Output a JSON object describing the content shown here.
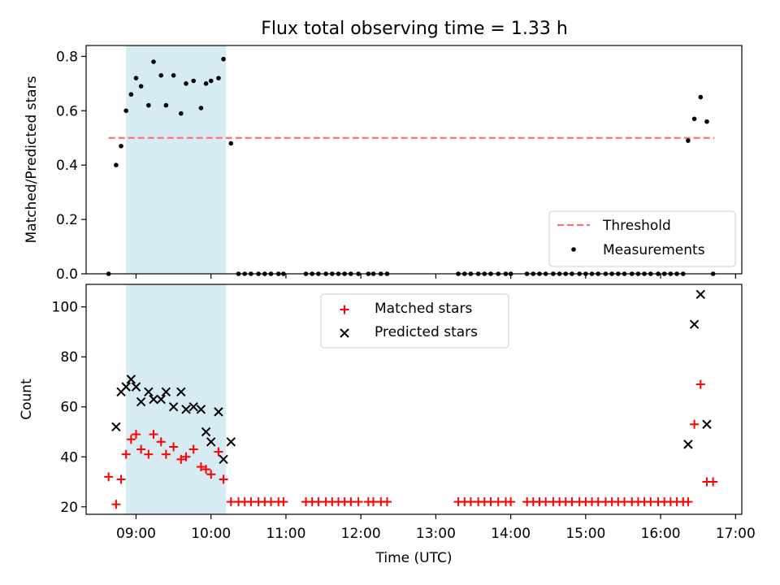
{
  "title": "Flux total observing time = 1.33 h",
  "chart_data": [
    {
      "type": "scatter",
      "xlabel": "",
      "ylabel": "Matched/Predicted stars",
      "xlim": [
        "08:20",
        "17:05"
      ],
      "ylim": [
        0,
        0.84
      ],
      "yticks": [
        0.0,
        0.2,
        0.4,
        0.6,
        0.8
      ],
      "ytick_labels": [
        "0.0",
        "0.2",
        "0.4",
        "0.6",
        "0.8"
      ],
      "grid": false,
      "legend_position": "lower-right",
      "shaded_span": {
        "x": [
          "08:52",
          "10:12"
        ],
        "color": "#add8e6"
      },
      "threshold": {
        "name": "Threshold",
        "y": 0.5,
        "x": [
          "08:38",
          "16:43"
        ],
        "color": "#ff7070",
        "style": "dashed"
      },
      "series": [
        {
          "name": "Measurements",
          "marker": "dot",
          "color": "#000000",
          "x": [
            "08:38",
            "08:44",
            "08:48",
            "08:52",
            "08:56",
            "09:00",
            "09:04",
            "09:10",
            "09:14",
            "09:20",
            "09:24",
            "09:30",
            "09:36",
            "09:40",
            "09:46",
            "09:52",
            "09:56",
            "10:00",
            "10:06",
            "10:10",
            "10:16",
            "10:22",
            "10:27",
            "10:32",
            "10:38",
            "10:43",
            "10:48",
            "10:54",
            "10:58",
            "11:16",
            "11:21",
            "11:26",
            "11:32",
            "11:37",
            "11:42",
            "11:47",
            "11:52",
            "11:58",
            "12:06",
            "12:10",
            "12:16",
            "12:21",
            "13:18",
            "13:23",
            "13:28",
            "13:34",
            "13:39",
            "13:44",
            "13:50",
            "13:56",
            "14:00",
            "14:13",
            "14:18",
            "14:23",
            "14:28",
            "14:34",
            "14:39",
            "14:44",
            "14:49",
            "14:55",
            "15:00",
            "15:05",
            "15:10",
            "15:16",
            "15:21",
            "15:26",
            "15:31",
            "15:37",
            "15:42",
            "15:47",
            "15:52",
            "15:58",
            "16:03",
            "16:08",
            "16:13",
            "16:18",
            "16:22",
            "16:27",
            "16:32",
            "16:37",
            "16:42"
          ],
          "y": [
            0.0,
            0.4,
            0.47,
            0.6,
            0.66,
            0.72,
            0.69,
            0.62,
            0.78,
            0.73,
            0.62,
            0.73,
            0.59,
            0.7,
            0.71,
            0.61,
            0.7,
            0.71,
            0.72,
            0.79,
            0.48,
            0,
            0,
            0,
            0,
            0,
            0,
            0,
            0,
            0,
            0,
            0,
            0,
            0,
            0,
            0,
            0,
            0,
            0,
            0,
            0,
            0,
            0,
            0,
            0,
            0,
            0,
            0,
            0,
            0,
            0,
            0,
            0,
            0,
            0,
            0,
            0,
            0,
            0,
            0,
            0,
            0,
            0,
            0,
            0,
            0,
            0,
            0,
            0,
            0,
            0,
            0,
            0,
            0,
            0,
            0,
            0.49,
            0.57,
            0.65,
            0.56,
            0.0
          ]
        }
      ]
    },
    {
      "type": "scatter",
      "xlabel": "Time (UTC)",
      "ylabel": "Count",
      "xlim": [
        "08:20",
        "17:05"
      ],
      "ylim": [
        17,
        109
      ],
      "yticks": [
        20,
        40,
        60,
        80,
        100
      ],
      "ytick_labels": [
        "20",
        "40",
        "60",
        "80",
        "100"
      ],
      "xticks": [
        "09:00",
        "10:00",
        "11:00",
        "12:00",
        "13:00",
        "14:00",
        "15:00",
        "16:00",
        "17:00"
      ],
      "grid": false,
      "legend_position": "top-center",
      "shaded_span": {
        "x": [
          "08:52",
          "10:12"
        ],
        "color": "#add8e6"
      },
      "series": [
        {
          "name": "Matched stars",
          "marker": "plus",
          "color": "#ff0000",
          "x": [
            "08:38",
            "08:44",
            "08:48",
            "08:52",
            "08:56",
            "09:00",
            "09:04",
            "09:10",
            "09:14",
            "09:20",
            "09:24",
            "09:30",
            "09:36",
            "09:40",
            "09:46",
            "09:52",
            "09:56",
            "10:00",
            "10:06",
            "10:10",
            "10:16",
            "10:22",
            "10:27",
            "10:32",
            "10:38",
            "10:43",
            "10:48",
            "10:54",
            "10:58",
            "11:16",
            "11:21",
            "11:26",
            "11:32",
            "11:37",
            "11:42",
            "11:47",
            "11:52",
            "11:58",
            "12:06",
            "12:10",
            "12:16",
            "12:21",
            "13:18",
            "13:23",
            "13:28",
            "13:34",
            "13:39",
            "13:44",
            "13:50",
            "13:56",
            "14:00",
            "14:13",
            "14:18",
            "14:23",
            "14:28",
            "14:34",
            "14:39",
            "14:44",
            "14:49",
            "14:55",
            "15:00",
            "15:05",
            "15:10",
            "15:16",
            "15:21",
            "15:26",
            "15:31",
            "15:37",
            "15:42",
            "15:47",
            "15:52",
            "15:58",
            "16:03",
            "16:08",
            "16:13",
            "16:18",
            "16:22",
            "16:27",
            "16:32",
            "16:37",
            "16:42"
          ],
          "y": [
            32,
            21,
            31,
            41,
            47,
            49,
            43,
            41,
            49,
            46,
            41,
            44,
            39,
            40,
            43,
            36,
            35,
            33,
            42,
            31,
            22,
            22,
            22,
            22,
            22,
            22,
            22,
            22,
            22,
            22,
            22,
            22,
            22,
            22,
            22,
            22,
            22,
            22,
            22,
            22,
            22,
            22,
            22,
            22,
            22,
            22,
            22,
            22,
            22,
            22,
            22,
            22,
            22,
            22,
            22,
            22,
            22,
            22,
            22,
            22,
            22,
            22,
            22,
            22,
            22,
            22,
            22,
            22,
            22,
            22,
            22,
            22,
            22,
            22,
            22,
            22,
            22,
            53,
            69,
            30,
            30
          ]
        },
        {
          "name": "Predicted stars",
          "marker": "x",
          "color": "#000000",
          "x": [
            "08:44",
            "08:48",
            "08:52",
            "08:56",
            "09:00",
            "09:04",
            "09:10",
            "09:14",
            "09:20",
            "09:24",
            "09:30",
            "09:36",
            "09:40",
            "09:46",
            "09:52",
            "09:56",
            "10:00",
            "10:06",
            "10:10",
            "10:16",
            "16:22",
            "16:27",
            "16:32",
            "16:37"
          ],
          "y": [
            52,
            66,
            68,
            71,
            68,
            62,
            66,
            63,
            63,
            66,
            60,
            66,
            59,
            60,
            59,
            50,
            46,
            58,
            39,
            46,
            45,
            93,
            105,
            53
          ]
        }
      ]
    }
  ]
}
